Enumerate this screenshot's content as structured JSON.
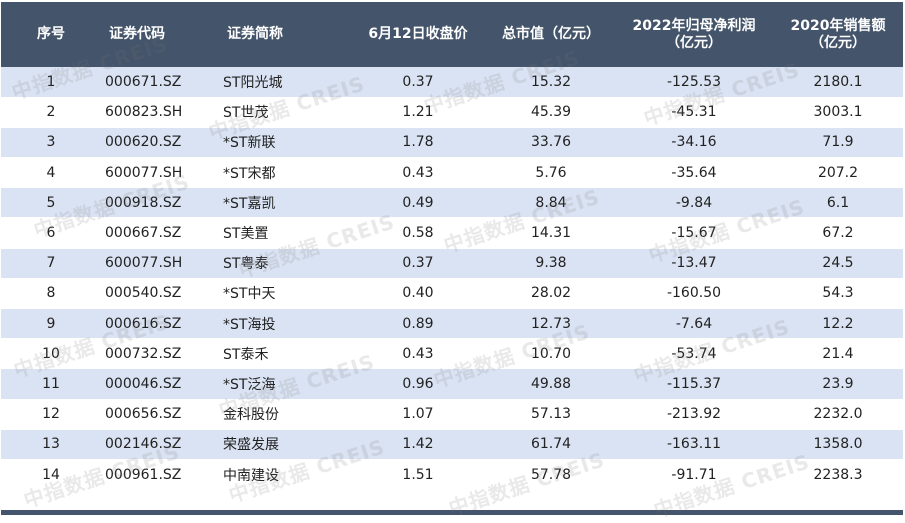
{
  "table": {
    "headers": [
      {
        "label": "序号"
      },
      {
        "label": "证券代码"
      },
      {
        "label": "证券简称"
      },
      {
        "label": "6月12日收盘价"
      },
      {
        "label": "总市值（亿元）"
      },
      {
        "label": "2022年归母净利润",
        "sub": "（亿元）"
      },
      {
        "label": "2020年销售额",
        "sub": "（亿元）"
      }
    ],
    "rows": [
      {
        "no": "1",
        "code": "000671.SZ",
        "name": "ST阳光城",
        "price": "0.37",
        "cap": "15.32",
        "profit": "-125.53",
        "sales": "2180.1"
      },
      {
        "no": "2",
        "code": "600823.SH",
        "name": "ST世茂",
        "price": "1.21",
        "cap": "45.39",
        "profit": "-45.31",
        "sales": "3003.1"
      },
      {
        "no": "3",
        "code": "000620.SZ",
        "name": "*ST新联",
        "price": "1.78",
        "cap": "33.76",
        "profit": "-34.16",
        "sales": "71.9"
      },
      {
        "no": "4",
        "code": "600077.SH",
        "name": "*ST宋都",
        "price": "0.43",
        "cap": "5.76",
        "profit": "-35.64",
        "sales": "207.2"
      },
      {
        "no": "5",
        "code": "000918.SZ",
        "name": "*ST嘉凯",
        "price": "0.49",
        "cap": "8.84",
        "profit": "-9.84",
        "sales": "6.1"
      },
      {
        "no": "6",
        "code": "000667.SZ",
        "name": "ST美置",
        "price": "0.58",
        "cap": "14.31",
        "profit": "-15.67",
        "sales": "67.2"
      },
      {
        "no": "7",
        "code": "600077.SH",
        "name": "ST粤泰",
        "price": "0.37",
        "cap": "9.38",
        "profit": "-13.47",
        "sales": "24.5"
      },
      {
        "no": "8",
        "code": "000540.SZ",
        "name": "*ST中天",
        "price": "0.40",
        "cap": "28.02",
        "profit": "-160.50",
        "sales": "54.3"
      },
      {
        "no": "9",
        "code": "000616.SZ",
        "name": "*ST海投",
        "price": "0.89",
        "cap": "12.73",
        "profit": "-7.64",
        "sales": "12.2"
      },
      {
        "no": "10",
        "code": "000732.SZ",
        "name": "ST泰禾",
        "price": "0.43",
        "cap": "10.70",
        "profit": "-53.74",
        "sales": "21.4"
      },
      {
        "no": "11",
        "code": "000046.SZ",
        "name": "*ST泛海",
        "price": "0.96",
        "cap": "49.88",
        "profit": "-115.37",
        "sales": "23.9"
      },
      {
        "no": "12",
        "code": "000656.SZ",
        "name": "金科股份",
        "price": "1.07",
        "cap": "57.13",
        "profit": "-213.92",
        "sales": "2232.0"
      },
      {
        "no": "13",
        "code": "002146.SZ",
        "name": "荣盛发展",
        "price": "1.42",
        "cap": "61.74",
        "profit": "-163.11",
        "sales": "1358.0"
      },
      {
        "no": "14",
        "code": "000961.SZ",
        "name": "中南建设",
        "price": "1.51",
        "cap": "57.78",
        "profit": "-91.71",
        "sales": "2238.3"
      }
    ]
  },
  "watermark": {
    "text": "中指数据 CREIS"
  }
}
